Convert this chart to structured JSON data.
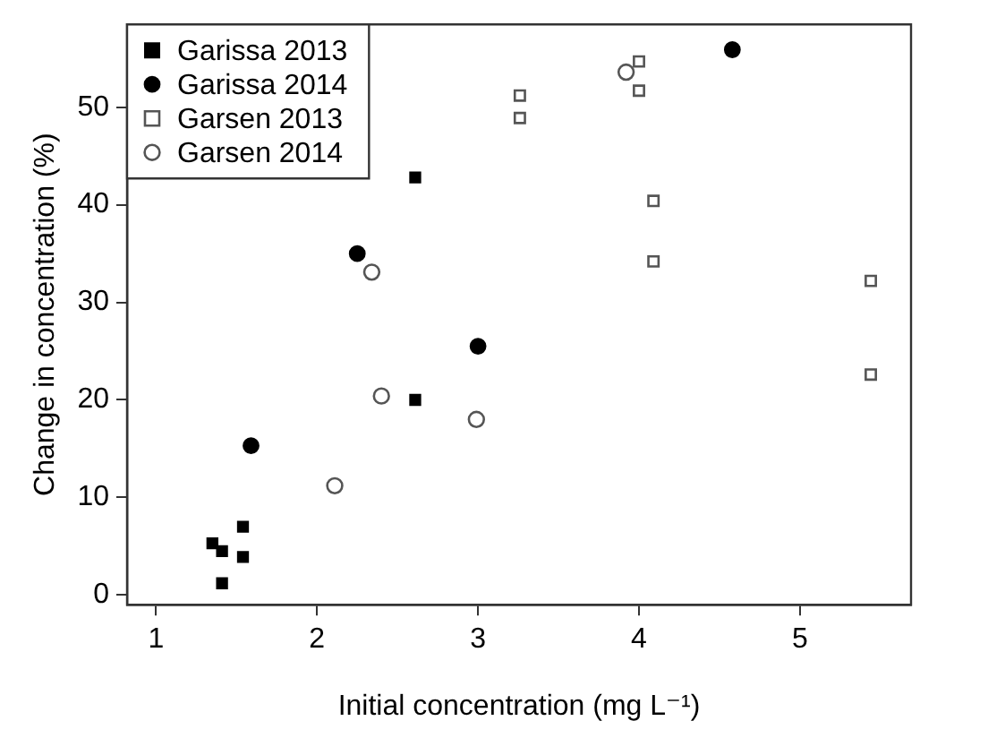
{
  "chart_data": {
    "type": "scatter",
    "xlabel": "Initial concentration (mg L⁻¹)",
    "ylabel": "Change in concentration (%)",
    "xlim": [
      0.82,
      5.69
    ],
    "ylim": [
      -1,
      58.5
    ],
    "xticks": [
      1,
      2,
      3,
      4,
      5
    ],
    "yticks": [
      0,
      10,
      20,
      30,
      40,
      50
    ],
    "grid": false,
    "legend": "top left",
    "series": [
      {
        "name": "Garissa 2013",
        "color": "#000000",
        "marker": "square",
        "x": [
          1.35,
          1.41,
          1.41,
          1.54,
          1.54,
          2.61,
          2.61
        ],
        "values": [
          5.3,
          4.5,
          1.2,
          7.0,
          3.9,
          42.8,
          20.0
        ]
      },
      {
        "name": "Garissa 2014",
        "color": "#000000",
        "marker": "circle",
        "x": [
          1.59,
          2.25,
          3.0,
          4.58
        ],
        "values": [
          15.3,
          35.0,
          25.5,
          55.9
        ]
      },
      {
        "name": "Garsen 2013",
        "color": "#555555",
        "marker": "square",
        "x": [
          3.26,
          3.26,
          4.0,
          4.0,
          4.09,
          4.09,
          5.44,
          5.44
        ],
        "values": [
          51.2,
          48.9,
          54.7,
          51.7,
          40.4,
          34.2,
          32.2,
          22.6
        ]
      },
      {
        "name": "Garsen 2014",
        "color": "#555555",
        "marker": "circle",
        "x": [
          2.11,
          2.34,
          2.4,
          2.99,
          3.92
        ],
        "values": [
          11.2,
          33.1,
          20.4,
          18.0,
          53.6
        ]
      }
    ]
  }
}
